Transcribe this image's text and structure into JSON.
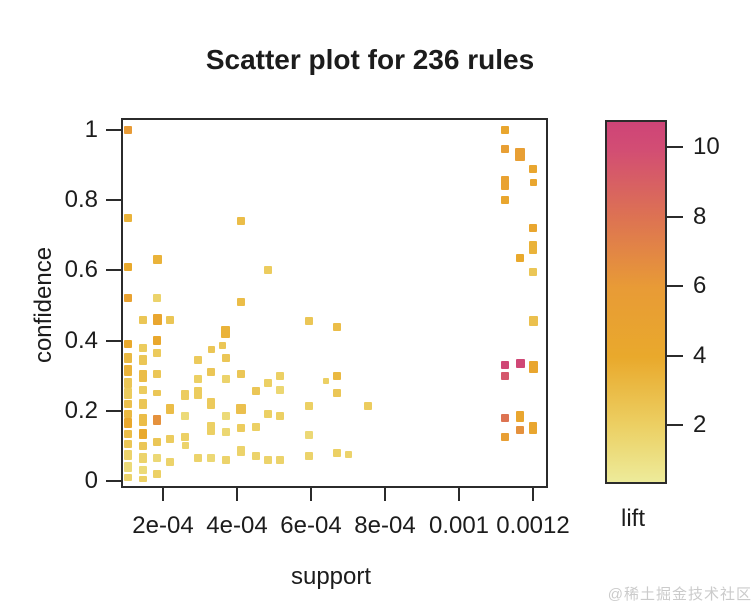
{
  "watermark": "@稀土掘金技术社区",
  "chart_data": {
    "type": "scatter",
    "title": "Scatter plot for 236 rules",
    "xlabel": "support",
    "ylabel": "confidence",
    "color_label": "lift",
    "n_rules": 236,
    "grid": false,
    "xlim_support": [
      8.6e-05,
      0.00123
    ],
    "ylim_confidence": [
      0,
      1
    ],
    "x_ticks": [
      {
        "label": "2e-04",
        "support_x1e4": 2
      },
      {
        "label": "4e-04",
        "support_x1e4": 4
      },
      {
        "label": "6e-04",
        "support_x1e4": 6
      },
      {
        "label": "8e-04",
        "support_x1e4": 8
      },
      {
        "label": "0.001",
        "support_x1e4": 10
      },
      {
        "label": "0.0012",
        "support_x1e4": 12
      }
    ],
    "y_ticks": [
      {
        "label": "0",
        "confidence": 0
      },
      {
        "label": "0.2",
        "confidence": 0.2
      },
      {
        "label": "0.4",
        "confidence": 0.4
      },
      {
        "label": "0.6",
        "confidence": 0.6
      },
      {
        "label": "0.8",
        "confidence": 0.8
      },
      {
        "label": "1",
        "confidence": 1
      }
    ],
    "lift_legend": {
      "ticks": [
        2,
        4,
        6,
        8,
        10
      ],
      "range": [
        0.4,
        10.8
      ],
      "gradient_anchors": [
        {
          "lift": 0.4,
          "color": "#edeb9a"
        },
        {
          "lift": 2,
          "color": "#ecd064"
        },
        {
          "lift": 4,
          "color": "#e9a92c"
        },
        {
          "lift": 6,
          "color": "#e89b36"
        },
        {
          "lift": 8,
          "color": "#dd7352"
        },
        {
          "lift": 10,
          "color": "#d24d74"
        },
        {
          "lift": 10.8,
          "color": "#ce4477"
        }
      ]
    },
    "points_columns": [
      "support_x1e4",
      "confidence",
      "lift",
      "w_px",
      "h_px"
    ],
    "points": [
      [
        1.05,
        1.0,
        6,
        8,
        8
      ],
      [
        1.05,
        0.75,
        3.5,
        8,
        8
      ],
      [
        1.05,
        0.61,
        4,
        8,
        8
      ],
      [
        1.05,
        0.52,
        5,
        8,
        8
      ],
      [
        1.05,
        0.39,
        4,
        8,
        8
      ],
      [
        1.05,
        0.35,
        3.2,
        8,
        10
      ],
      [
        1.05,
        0.315,
        3.5,
        8,
        11
      ],
      [
        1.05,
        0.28,
        2.5,
        8,
        10
      ],
      [
        1.05,
        0.25,
        2.2,
        8,
        11
      ],
      [
        1.05,
        0.22,
        2.8,
        8,
        8
      ],
      [
        1.05,
        0.19,
        3.2,
        8,
        8
      ],
      [
        1.05,
        0.165,
        4.2,
        8,
        10
      ],
      [
        1.05,
        0.135,
        3,
        8,
        8
      ],
      [
        1.05,
        0.105,
        2.5,
        8,
        8
      ],
      [
        1.05,
        0.075,
        1.8,
        8,
        10
      ],
      [
        1.05,
        0.04,
        1.4,
        8,
        10
      ],
      [
        1.05,
        0.01,
        1.8,
        8,
        7
      ],
      [
        1.45,
        0.46,
        2.5,
        8,
        8
      ],
      [
        1.45,
        0.38,
        2.2,
        8,
        8
      ],
      [
        1.45,
        0.345,
        2.5,
        8,
        10
      ],
      [
        1.45,
        0.3,
        3,
        8,
        12
      ],
      [
        1.45,
        0.26,
        2.2,
        8,
        8
      ],
      [
        1.45,
        0.22,
        2.5,
        8,
        10
      ],
      [
        1.45,
        0.175,
        3,
        8,
        12
      ],
      [
        1.45,
        0.135,
        4,
        8,
        10
      ],
      [
        1.45,
        0.1,
        2.5,
        8,
        8
      ],
      [
        1.45,
        0.065,
        1.8,
        8,
        10
      ],
      [
        1.45,
        0.03,
        1.4,
        8,
        8
      ],
      [
        1.45,
        0.005,
        2,
        8,
        6
      ],
      [
        1.85,
        0.63,
        3.5,
        9,
        9
      ],
      [
        1.85,
        0.52,
        1.8,
        8,
        8
      ],
      [
        1.85,
        0.46,
        4.5,
        9,
        11
      ],
      [
        1.85,
        0.4,
        4.2,
        8,
        9
      ],
      [
        1.85,
        0.365,
        2.3,
        8,
        8
      ],
      [
        1.85,
        0.305,
        2.5,
        8,
        8
      ],
      [
        1.85,
        0.25,
        2.5,
        8,
        6
      ],
      [
        1.85,
        0.175,
        6.5,
        8,
        10
      ],
      [
        1.85,
        0.11,
        2.5,
        8,
        8
      ],
      [
        1.85,
        0.065,
        1.5,
        8,
        8
      ],
      [
        1.85,
        0.02,
        2,
        8,
        8
      ],
      [
        2.2,
        0.46,
        2.5,
        8,
        8
      ],
      [
        2.2,
        0.205,
        3,
        8,
        10
      ],
      [
        2.2,
        0.12,
        2.2,
        8,
        8
      ],
      [
        2.2,
        0.055,
        1.8,
        8,
        8
      ],
      [
        2.6,
        0.245,
        2.2,
        8,
        10
      ],
      [
        2.6,
        0.185,
        1.4,
        8,
        8
      ],
      [
        2.6,
        0.125,
        2,
        8,
        8
      ],
      [
        2.6,
        0.1,
        1.8,
        7,
        7
      ],
      [
        2.95,
        0.345,
        2.3,
        8,
        8
      ],
      [
        2.95,
        0.29,
        2,
        8,
        8
      ],
      [
        2.95,
        0.25,
        2.2,
        8,
        12
      ],
      [
        2.95,
        0.065,
        1.8,
        8,
        8
      ],
      [
        3.3,
        0.375,
        2.5,
        7,
        7
      ],
      [
        3.3,
        0.31,
        2.5,
        8,
        8
      ],
      [
        3.3,
        0.22,
        2.3,
        8,
        11
      ],
      [
        3.3,
        0.15,
        2,
        8,
        13
      ],
      [
        3.3,
        0.065,
        1.5,
        8,
        8
      ],
      [
        3.6,
        0.385,
        2.5,
        7,
        7
      ],
      [
        3.7,
        0.425,
        3.5,
        9,
        12
      ],
      [
        3.7,
        0.35,
        2.5,
        8,
        8
      ],
      [
        3.7,
        0.29,
        1.8,
        8,
        8
      ],
      [
        3.7,
        0.185,
        1.4,
        8,
        8
      ],
      [
        3.7,
        0.14,
        1.6,
        8,
        8
      ],
      [
        3.7,
        0.06,
        1.8,
        8,
        8
      ],
      [
        4.1,
        0.74,
        3,
        8,
        8
      ],
      [
        4.1,
        0.51,
        3,
        8,
        8
      ],
      [
        4.1,
        0.305,
        2.5,
        8,
        8
      ],
      [
        4.1,
        0.205,
        2.8,
        10,
        10
      ],
      [
        4.1,
        0.15,
        2.2,
        8,
        8
      ],
      [
        4.1,
        0.085,
        1.8,
        8,
        10
      ],
      [
        4.5,
        0.255,
        2.5,
        8,
        8
      ],
      [
        4.5,
        0.155,
        2,
        8,
        8
      ],
      [
        4.5,
        0.07,
        1.8,
        8,
        8
      ],
      [
        4.85,
        0.6,
        2.2,
        8,
        8
      ],
      [
        4.85,
        0.28,
        2,
        8,
        8
      ],
      [
        4.85,
        0.19,
        2,
        8,
        8
      ],
      [
        4.85,
        0.06,
        1.8,
        8,
        8
      ],
      [
        5.15,
        0.3,
        2,
        8,
        8
      ],
      [
        5.15,
        0.26,
        1.6,
        8,
        8
      ],
      [
        5.15,
        0.185,
        2,
        8,
        8
      ],
      [
        5.15,
        0.06,
        1.8,
        8,
        8
      ],
      [
        5.95,
        0.455,
        2.5,
        8,
        8
      ],
      [
        5.95,
        0.215,
        2,
        8,
        8
      ],
      [
        5.95,
        0.13,
        1.5,
        8,
        8
      ],
      [
        5.95,
        0.07,
        1.8,
        8,
        8
      ],
      [
        6.4,
        0.285,
        2,
        6,
        6
      ],
      [
        6.7,
        0.44,
        3,
        8,
        8
      ],
      [
        6.7,
        0.3,
        3.2,
        8,
        8
      ],
      [
        6.7,
        0.25,
        2.5,
        8,
        8
      ],
      [
        6.7,
        0.08,
        2,
        8,
        8
      ],
      [
        7.0,
        0.075,
        1.8,
        7,
        7
      ],
      [
        7.55,
        0.215,
        2.2,
        8,
        8
      ],
      [
        11.25,
        1.0,
        4.5,
        8,
        8
      ],
      [
        11.25,
        0.945,
        5.5,
        8,
        8
      ],
      [
        11.25,
        0.85,
        5,
        8,
        14
      ],
      [
        11.25,
        0.8,
        4.5,
        8,
        8
      ],
      [
        11.25,
        0.33,
        10.5,
        8,
        8
      ],
      [
        11.25,
        0.3,
        9.5,
        8,
        8
      ],
      [
        11.25,
        0.18,
        8,
        8,
        8
      ],
      [
        11.25,
        0.125,
        5.5,
        8,
        8
      ],
      [
        11.65,
        0.93,
        5.5,
        10,
        13
      ],
      [
        11.65,
        0.635,
        4,
        8,
        8
      ],
      [
        11.65,
        0.335,
        10.5,
        9,
        9
      ],
      [
        11.65,
        0.185,
        4.5,
        8,
        11
      ],
      [
        11.65,
        0.145,
        6.5,
        8,
        8
      ],
      [
        12,
        0.89,
        4.5,
        8,
        8
      ],
      [
        12,
        0.85,
        4.5,
        7,
        7
      ],
      [
        12,
        0.72,
        4.5,
        8,
        8
      ],
      [
        12,
        0.665,
        3.5,
        8,
        13
      ],
      [
        12,
        0.595,
        2.5,
        8,
        8
      ],
      [
        12,
        0.455,
        2.8,
        9,
        10
      ],
      [
        12,
        0.325,
        4.5,
        9,
        12
      ],
      [
        12,
        0.15,
        4.5,
        8,
        12
      ]
    ]
  }
}
